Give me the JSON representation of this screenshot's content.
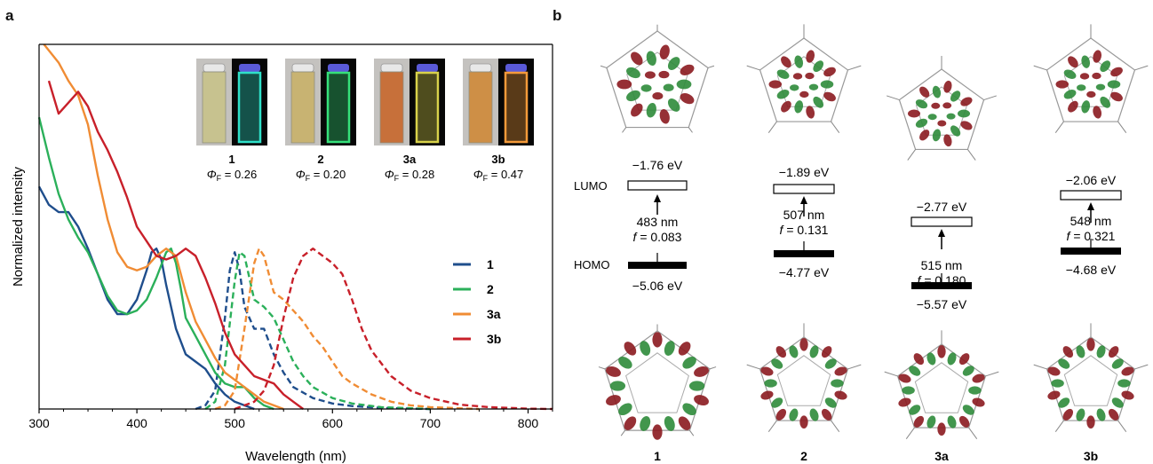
{
  "panels": {
    "a": "a",
    "b": "b"
  },
  "chart_data": {
    "type": "line",
    "xlabel": "Wavelength (nm)",
    "ylabel": "Normalized intensity",
    "xlim": [
      300,
      825
    ],
    "ylim": [
      0,
      1
    ],
    "xticks": [
      300,
      400,
      500,
      600,
      700,
      800
    ],
    "x_tick_labels": [
      "300",
      "400",
      "500",
      "600",
      "700",
      "800"
    ],
    "grid": false,
    "legend_position": "right",
    "series": [
      {
        "name": "1",
        "kind": "absorption",
        "style": "solid",
        "color": "#1f4e8c",
        "x": [
          300,
          310,
          320,
          330,
          340,
          350,
          360,
          370,
          380,
          390,
          400,
          410,
          415,
          420,
          425,
          430,
          440,
          450,
          460,
          470,
          480,
          490,
          500,
          510,
          520
        ],
        "y": [
          0.61,
          0.56,
          0.54,
          0.54,
          0.5,
          0.44,
          0.37,
          0.3,
          0.26,
          0.26,
          0.3,
          0.38,
          0.43,
          0.44,
          0.41,
          0.34,
          0.22,
          0.15,
          0.13,
          0.11,
          0.07,
          0.04,
          0.02,
          0.01,
          0.0
        ]
      },
      {
        "name": "1",
        "kind": "emission",
        "style": "dashed",
        "color": "#1f4e8c",
        "x": [
          460,
          470,
          480,
          490,
          495,
          500,
          505,
          510,
          520,
          530,
          540,
          550,
          560,
          580,
          600,
          620,
          650,
          700
        ],
        "y": [
          0.0,
          0.01,
          0.05,
          0.25,
          0.38,
          0.43,
          0.38,
          0.28,
          0.22,
          0.22,
          0.15,
          0.1,
          0.06,
          0.03,
          0.015,
          0.008,
          0.003,
          0.0
        ]
      },
      {
        "name": "2",
        "kind": "absorption",
        "style": "solid",
        "color": "#2bb05a",
        "x": [
          300,
          310,
          320,
          330,
          340,
          350,
          360,
          370,
          380,
          390,
          400,
          410,
          420,
          430,
          435,
          440,
          445,
          450,
          460,
          470,
          480,
          490,
          500,
          510,
          520,
          530,
          540
        ],
        "y": [
          0.8,
          0.69,
          0.59,
          0.52,
          0.47,
          0.43,
          0.37,
          0.31,
          0.27,
          0.26,
          0.27,
          0.3,
          0.36,
          0.43,
          0.44,
          0.4,
          0.33,
          0.25,
          0.2,
          0.15,
          0.1,
          0.07,
          0.06,
          0.06,
          0.03,
          0.01,
          0.0
        ]
      },
      {
        "name": "2",
        "kind": "emission",
        "style": "dashed",
        "color": "#2bb05a",
        "x": [
          470,
          480,
          490,
          500,
          505,
          510,
          515,
          520,
          530,
          540,
          550,
          560,
          570,
          580,
          600,
          620,
          650,
          700
        ],
        "y": [
          0.0,
          0.02,
          0.12,
          0.35,
          0.43,
          0.42,
          0.36,
          0.3,
          0.28,
          0.25,
          0.19,
          0.13,
          0.09,
          0.06,
          0.03,
          0.015,
          0.005,
          0.0
        ]
      },
      {
        "name": "3a",
        "kind": "absorption",
        "style": "solid",
        "color": "#f08c34",
        "x": [
          305,
          320,
          330,
          340,
          350,
          360,
          370,
          380,
          390,
          400,
          410,
          420,
          430,
          440,
          450,
          460,
          470,
          480,
          490,
          500,
          510,
          520,
          530,
          540,
          550
        ],
        "y": [
          1.0,
          0.95,
          0.9,
          0.86,
          0.78,
          0.64,
          0.52,
          0.43,
          0.39,
          0.38,
          0.39,
          0.42,
          0.44,
          0.42,
          0.32,
          0.24,
          0.19,
          0.14,
          0.1,
          0.08,
          0.06,
          0.04,
          0.02,
          0.01,
          0.0
        ]
      },
      {
        "name": "3a",
        "kind": "emission",
        "style": "dashed",
        "color": "#f08c34",
        "x": [
          480,
          490,
          500,
          510,
          520,
          525,
          530,
          540,
          550,
          560,
          570,
          580,
          590,
          600,
          610,
          620,
          640,
          660,
          680,
          700,
          750
        ],
        "y": [
          0.0,
          0.01,
          0.05,
          0.22,
          0.4,
          0.44,
          0.42,
          0.32,
          0.3,
          0.27,
          0.24,
          0.2,
          0.17,
          0.13,
          0.09,
          0.07,
          0.04,
          0.02,
          0.01,
          0.005,
          0.0
        ]
      },
      {
        "name": "3b",
        "kind": "absorption",
        "style": "solid",
        "color": "#c8202a",
        "x": [
          310,
          320,
          330,
          340,
          350,
          360,
          370,
          380,
          390,
          400,
          410,
          420,
          430,
          440,
          450,
          460,
          470,
          480,
          490,
          500,
          510,
          520,
          530,
          540,
          550,
          560,
          570
        ],
        "y": [
          0.9,
          0.81,
          0.84,
          0.87,
          0.83,
          0.76,
          0.71,
          0.65,
          0.58,
          0.5,
          0.46,
          0.42,
          0.41,
          0.42,
          0.44,
          0.42,
          0.36,
          0.29,
          0.21,
          0.15,
          0.12,
          0.09,
          0.08,
          0.07,
          0.04,
          0.02,
          0.0
        ]
      },
      {
        "name": "3b",
        "kind": "emission",
        "style": "dashed",
        "color": "#c8202a",
        "x": [
          500,
          520,
          530,
          540,
          550,
          560,
          570,
          580,
          590,
          600,
          610,
          620,
          630,
          640,
          660,
          680,
          700,
          730,
          760,
          800,
          825
        ],
        "y": [
          0.0,
          0.02,
          0.05,
          0.12,
          0.25,
          0.36,
          0.42,
          0.44,
          0.42,
          0.4,
          0.37,
          0.3,
          0.22,
          0.16,
          0.09,
          0.05,
          0.03,
          0.012,
          0.005,
          0.001,
          0.0
        ]
      }
    ],
    "legend": [
      {
        "label": "1",
        "color": "#1f4e8c"
      },
      {
        "label": "2",
        "color": "#2bb05a"
      },
      {
        "label": "3a",
        "color": "#f08c34"
      },
      {
        "label": "3b",
        "color": "#c8202a"
      }
    ],
    "inset_vials": [
      {
        "label": "1",
        "qy_symbol": "Φ",
        "qy_sub": "F",
        "qy_text": " = 0.26",
        "ambient_color": "#c8c28a",
        "fluor_color": "#2fe0c8"
      },
      {
        "label": "2",
        "qy_symbol": "Φ",
        "qy_sub": "F",
        "qy_text": " = 0.20",
        "ambient_color": "#c9b26a",
        "fluor_color": "#36e07a"
      },
      {
        "label": "3a",
        "qy_symbol": "Φ",
        "qy_sub": "F",
        "qy_text": " = 0.28",
        "ambient_color": "#c8682c",
        "fluor_color": "#d8d24a"
      },
      {
        "label": "3b",
        "qy_symbol": "Φ",
        "qy_sub": "F",
        "qy_text": " = 0.47",
        "ambient_color": "#d08a3a",
        "fluor_color": "#f49a3a"
      }
    ]
  },
  "orbital_panel": {
    "lumo_label": "LUMO",
    "homo_label": "HOMO",
    "orbital_colors": {
      "positive": "#2e8b3a",
      "negative": "#8b1a1f"
    },
    "compounds": [
      {
        "label": "1",
        "lumo_energy": "−1.76 eV",
        "homo_energy": "−5.06 eV",
        "wavelength": "483 nm",
        "f_label": "f",
        "f_value": " = 0.083"
      },
      {
        "label": "2",
        "lumo_energy": "−1.89 eV",
        "homo_energy": "−4.77 eV",
        "wavelength": "507 nm",
        "f_label": "f",
        "f_value": " = 0.131"
      },
      {
        "label": "3a",
        "lumo_energy": "−2.77 eV",
        "homo_energy": "−5.57 eV",
        "wavelength": "515 nm",
        "f_label": "f",
        "f_value": " = 0.180"
      },
      {
        "label": "3b",
        "lumo_energy": "−2.06 eV",
        "homo_energy": "−4.68 eV",
        "wavelength": "548 nm",
        "f_label": "f",
        "f_value": " = 0.321"
      }
    ]
  }
}
